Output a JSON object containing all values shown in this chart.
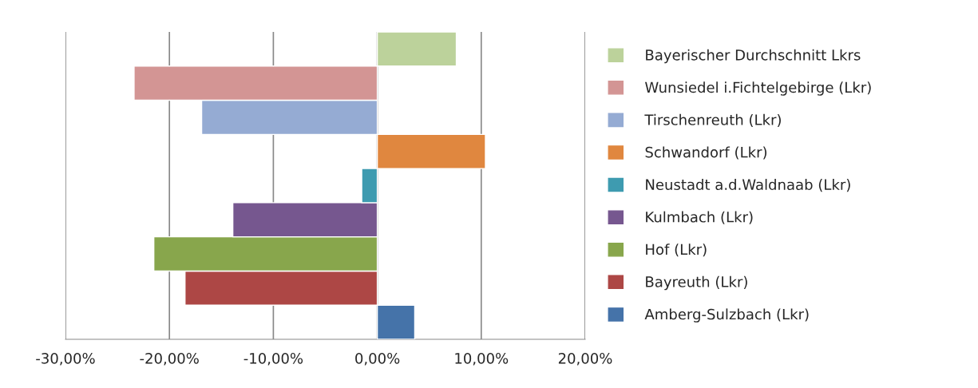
{
  "chart_data": {
    "type": "bar",
    "orientation": "horizontal",
    "categories": [
      null
    ],
    "series": [
      {
        "name": "Amberg-Sulzbach (Lkr)",
        "color": "#4573a9",
        "values": [
          3.6
        ]
      },
      {
        "name": "Bayreuth (Lkr)",
        "color": "#ad4745",
        "values": [
          -18.5
        ]
      },
      {
        "name": "Hof (Lkr)",
        "color": "#88a64c",
        "values": [
          -21.5
        ]
      },
      {
        "name": "Kulmbach (Lkr)",
        "color": "#76578f",
        "values": [
          -13.9
        ]
      },
      {
        "name": "Neustadt a.d.Waldnaab (Lkr)",
        "color": "#3e9bb0",
        "values": [
          -1.5
        ]
      },
      {
        "name": "Schwandorf (Lkr)",
        "color": "#e0873f",
        "values": [
          10.4
        ]
      },
      {
        "name": "Tirschenreuth (Lkr)",
        "color": "#95abd3",
        "values": [
          -16.9
        ]
      },
      {
        "name": "Wunsiedel i.Fichtelgebirge (Lkr)",
        "color": "#d39594",
        "values": [
          -23.4
        ]
      },
      {
        "name": "Bayerischer Durchschnitt Lkrs",
        "color": "#bcd29b",
        "values": [
          7.6
        ]
      }
    ],
    "xlim": [
      -30,
      20
    ],
    "xticks": [
      {
        "value": -30,
        "label": "-30,00%"
      },
      {
        "value": -20,
        "label": "-20,00%"
      },
      {
        "value": -10,
        "label": "-10,00%"
      },
      {
        "value": 0,
        "label": "0,00%"
      },
      {
        "value": 10,
        "label": "10,00%"
      },
      {
        "value": 20,
        "label": "20,00%"
      }
    ],
    "grid": "x",
    "legend": "right"
  }
}
